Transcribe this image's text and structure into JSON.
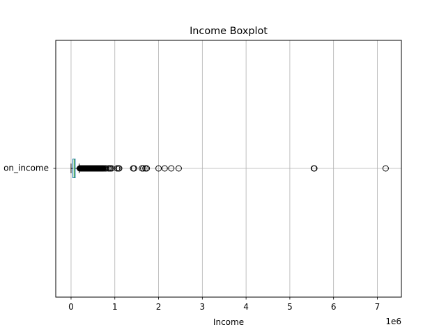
{
  "chart_data": {
    "type": "boxplot",
    "orientation": "horizontal",
    "title": "Income Boxplot",
    "xlabel": "Income",
    "ylabel": "",
    "offset_text": "1e6",
    "category_label": "on_income",
    "xlim": [
      -350000,
      7550000
    ],
    "x_ticks": [
      0,
      1000000,
      2000000,
      3000000,
      4000000,
      5000000,
      6000000,
      7000000
    ],
    "x_tick_labels": [
      "0",
      "1",
      "2",
      "3",
      "4",
      "5",
      "6",
      "7"
    ],
    "grid": true,
    "box": {
      "whisker_low": 0,
      "q1": 40000,
      "median": 70000,
      "q3": 95000,
      "whisker_high": 185000
    },
    "outliers": [
      200000,
      210000,
      220000,
      230000,
      240000,
      250000,
      260000,
      270000,
      280000,
      290000,
      300000,
      310000,
      320000,
      330000,
      340000,
      350000,
      360000,
      370000,
      380000,
      390000,
      400000,
      410000,
      420000,
      430000,
      440000,
      450000,
      460000,
      470000,
      480000,
      490000,
      500000,
      510000,
      520000,
      530000,
      540000,
      550000,
      560000,
      570000,
      580000,
      590000,
      600000,
      610000,
      620000,
      630000,
      640000,
      650000,
      660000,
      670000,
      680000,
      690000,
      700000,
      710000,
      720000,
      730000,
      750000,
      780000,
      800000,
      850000,
      880000,
      900000,
      930000,
      1050000,
      1080000,
      1100000,
      1420000,
      1440000,
      1620000,
      1650000,
      1700000,
      1730000,
      2000000,
      2140000,
      2290000,
      2460000,
      5550000,
      5560000,
      7190000
    ],
    "colors": {
      "box_edge": "#1f77b4",
      "median": "#2ca02c",
      "whisker": "#000000",
      "flier_edge": "#000000",
      "grid": "#b0b0b0"
    }
  }
}
